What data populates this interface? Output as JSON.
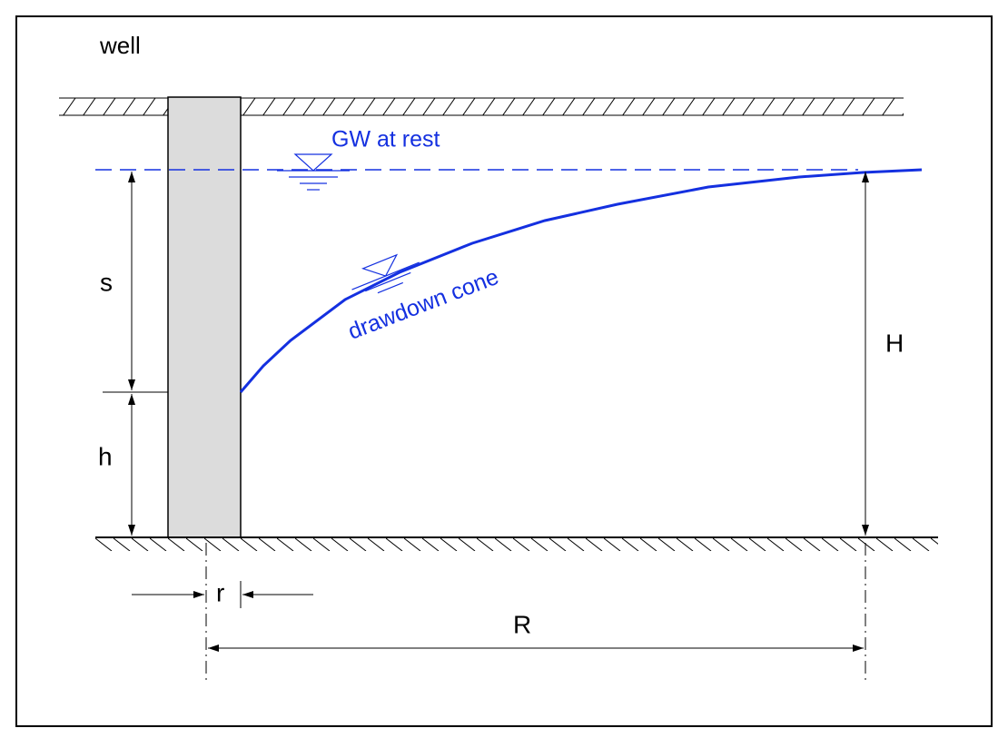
{
  "labels": {
    "well": "well",
    "gw_at_rest": "GW at rest",
    "drawdown_cone": "drawdown cone",
    "s": "s",
    "h": "h",
    "H": "H",
    "r": "r",
    "R": "R"
  }
}
